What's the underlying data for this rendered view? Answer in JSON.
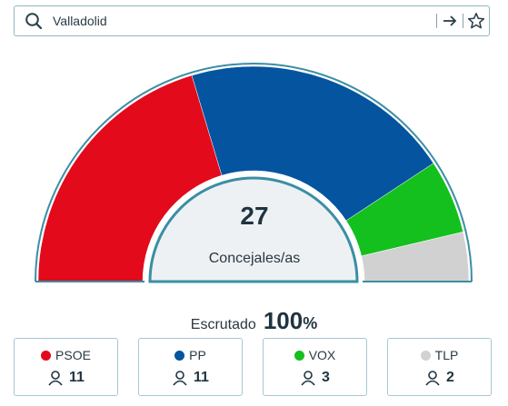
{
  "search": {
    "value": "Valladolid"
  },
  "icons": {
    "search": "search-icon",
    "go": "arrow-right-icon",
    "favorite": "star-icon",
    "seats": "person-icon"
  },
  "chart_data": {
    "type": "hemicycle",
    "total_seats": 27,
    "total_value": "27",
    "total_label": "Concejales/as",
    "parties": [
      {
        "name": "PSOE",
        "seats": 11,
        "seats_label": "11",
        "color": "#e20a1b"
      },
      {
        "name": "PP",
        "seats": 11,
        "seats_label": "11",
        "color": "#0454a0"
      },
      {
        "name": "VOX",
        "seats": 3,
        "seats_label": "3",
        "color": "#13c01d"
      },
      {
        "name": "TLP",
        "seats": 2,
        "seats_label": "2",
        "color": "#d1d1d1"
      }
    ]
  },
  "scrutiny": {
    "label": "Escrutado",
    "value": "100",
    "unit": "%"
  },
  "colors": {
    "accent_border": "#3a8ea5",
    "inner_fill": "#eef1f3"
  }
}
